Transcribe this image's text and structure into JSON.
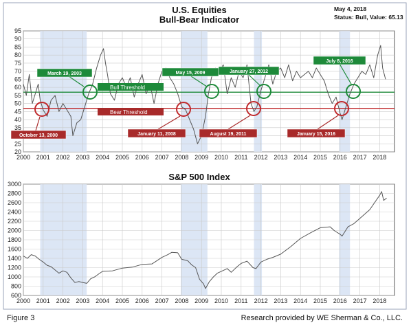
{
  "figure_label": "Figure 3",
  "credit": "Research provided by WE Sherman & Co., LLC.",
  "chart_data": [
    {
      "type": "line",
      "title": "U.S. Equities",
      "subtitle": "Bull-Bear Indicator",
      "date_text": "May 4, 2018",
      "status_text": "Status: Bull, Value: 65.13",
      "x_ticks": [
        "2000",
        "2001",
        "2002",
        "2003",
        "2004",
        "2005",
        "2006",
        "2007",
        "2008",
        "2009",
        "2010",
        "2011",
        "2012",
        "2013",
        "2014",
        "2015",
        "2016",
        "2017",
        "2018"
      ],
      "y_ticks": [
        20,
        25,
        30,
        35,
        40,
        45,
        50,
        55,
        60,
        65,
        70,
        75,
        80,
        85,
        90,
        95
      ],
      "xlim": [
        2000,
        2018.75
      ],
      "ylim": [
        20,
        95
      ],
      "bull_threshold": 57,
      "bear_threshold": 47,
      "bull_threshold_label": "Bull Threshold",
      "bear_threshold_label": "Bear Threshold",
      "shaded_periods": [
        [
          2000.85,
          2003.2
        ],
        [
          2007.95,
          2009.3
        ],
        [
          2011.65,
          2012.05
        ],
        [
          2015.95,
          2016.5
        ]
      ],
      "x": [
        2000.0,
        2000.15,
        2000.3,
        2000.45,
        2000.6,
        2000.75,
        2000.85,
        2001.0,
        2001.2,
        2001.4,
        2001.6,
        2001.8,
        2002.0,
        2002.2,
        2002.4,
        2002.5,
        2002.7,
        2002.9,
        2003.1,
        2003.3,
        2003.5,
        2003.7,
        2003.9,
        2004.05,
        2004.15,
        2004.25,
        2004.4,
        2004.6,
        2004.8,
        2005.0,
        2005.2,
        2005.4,
        2005.6,
        2005.8,
        2006.0,
        2006.2,
        2006.4,
        2006.6,
        2006.8,
        2007.0,
        2007.2,
        2007.4,
        2007.6,
        2007.8,
        2008.0,
        2008.2,
        2008.4,
        2008.6,
        2008.8,
        2009.0,
        2009.2,
        2009.35,
        2009.5,
        2009.7,
        2009.9,
        2010.1,
        2010.3,
        2010.5,
        2010.7,
        2010.9,
        2011.1,
        2011.3,
        2011.5,
        2011.65,
        2011.8,
        2012.0,
        2012.2,
        2012.4,
        2012.6,
        2012.8,
        2013.0,
        2013.2,
        2013.4,
        2013.6,
        2013.8,
        2014.0,
        2014.2,
        2014.4,
        2014.6,
        2014.8,
        2015.0,
        2015.2,
        2015.4,
        2015.6,
        2015.8,
        2016.0,
        2016.1,
        2016.3,
        2016.5,
        2016.7,
        2016.9,
        2017.1,
        2017.3,
        2017.5,
        2017.7,
        2017.9,
        2018.05,
        2018.15,
        2018.3
      ],
      "y": [
        62,
        55,
        68,
        50,
        56,
        62,
        52,
        46,
        42,
        52,
        55,
        45,
        50,
        46,
        42,
        30,
        38,
        40,
        48,
        56,
        62,
        72,
        80,
        84,
        75,
        68,
        56,
        52,
        62,
        66,
        60,
        66,
        54,
        62,
        68,
        56,
        62,
        50,
        62,
        70,
        72,
        66,
        62,
        56,
        48,
        46,
        40,
        34,
        25,
        30,
        42,
        56,
        66,
        72,
        70,
        74,
        56,
        66,
        60,
        70,
        66,
        74,
        50,
        45,
        48,
        58,
        66,
        74,
        62,
        70,
        72,
        66,
        74,
        64,
        70,
        66,
        68,
        70,
        66,
        72,
        68,
        64,
        56,
        50,
        54,
        44,
        40,
        48,
        56,
        62,
        66,
        70,
        68,
        74,
        66,
        80,
        86,
        72,
        65
      ]
    },
    {
      "type": "line",
      "title": "S&P 500 Index",
      "x_ticks": [
        "2000",
        "2001",
        "2002",
        "2003",
        "2004",
        "2005",
        "2006",
        "2007",
        "2008",
        "2009",
        "2010",
        "2011",
        "2012",
        "2013",
        "2014",
        "2015",
        "2016",
        "2017",
        "2018"
      ],
      "y_ticks": [
        600,
        800,
        1000,
        1200,
        1400,
        1600,
        1800,
        2000,
        2200,
        2400,
        2600,
        2800,
        3000
      ],
      "xlim": [
        2000,
        2018.75
      ],
      "ylim": [
        600,
        3000
      ],
      "shaded_periods": [
        [
          2000.85,
          2003.2
        ],
        [
          2007.95,
          2009.3
        ],
        [
          2011.65,
          2012.05
        ],
        [
          2015.95,
          2016.5
        ]
      ],
      "x": [
        2000.0,
        2000.2,
        2000.4,
        2000.6,
        2000.8,
        2001.0,
        2001.2,
        2001.4,
        2001.6,
        2001.8,
        2002.0,
        2002.2,
        2002.4,
        2002.6,
        2002.8,
        2003.0,
        2003.2,
        2003.4,
        2003.6,
        2003.8,
        2004.0,
        2004.5,
        2005.0,
        2005.5,
        2006.0,
        2006.5,
        2007.0,
        2007.3,
        2007.5,
        2007.8,
        2008.0,
        2008.3,
        2008.5,
        2008.7,
        2008.9,
        2009.1,
        2009.2,
        2009.4,
        2009.6,
        2009.8,
        2010.0,
        2010.3,
        2010.5,
        2010.8,
        2011.0,
        2011.3,
        2011.6,
        2011.75,
        2012.0,
        2012.3,
        2012.6,
        2013.0,
        2013.5,
        2014.0,
        2014.5,
        2015.0,
        2015.5,
        2015.7,
        2016.0,
        2016.1,
        2016.4,
        2016.7,
        2017.0,
        2017.5,
        2018.0,
        2018.1,
        2018.2,
        2018.35
      ],
      "y": [
        1450,
        1400,
        1480,
        1450,
        1380,
        1320,
        1250,
        1220,
        1150,
        1080,
        1130,
        1100,
        980,
        880,
        900,
        880,
        860,
        960,
        1000,
        1060,
        1120,
        1130,
        1190,
        1210,
        1270,
        1280,
        1420,
        1480,
        1530,
        1520,
        1380,
        1350,
        1260,
        1200,
        950,
        850,
        750,
        900,
        1000,
        1080,
        1120,
        1180,
        1100,
        1220,
        1290,
        1340,
        1200,
        1180,
        1320,
        1380,
        1420,
        1490,
        1650,
        1830,
        1950,
        2060,
        2080,
        2000,
        1920,
        1880,
        2080,
        2150,
        2260,
        2450,
        2760,
        2840,
        2650,
        2700
      ]
    }
  ]
}
